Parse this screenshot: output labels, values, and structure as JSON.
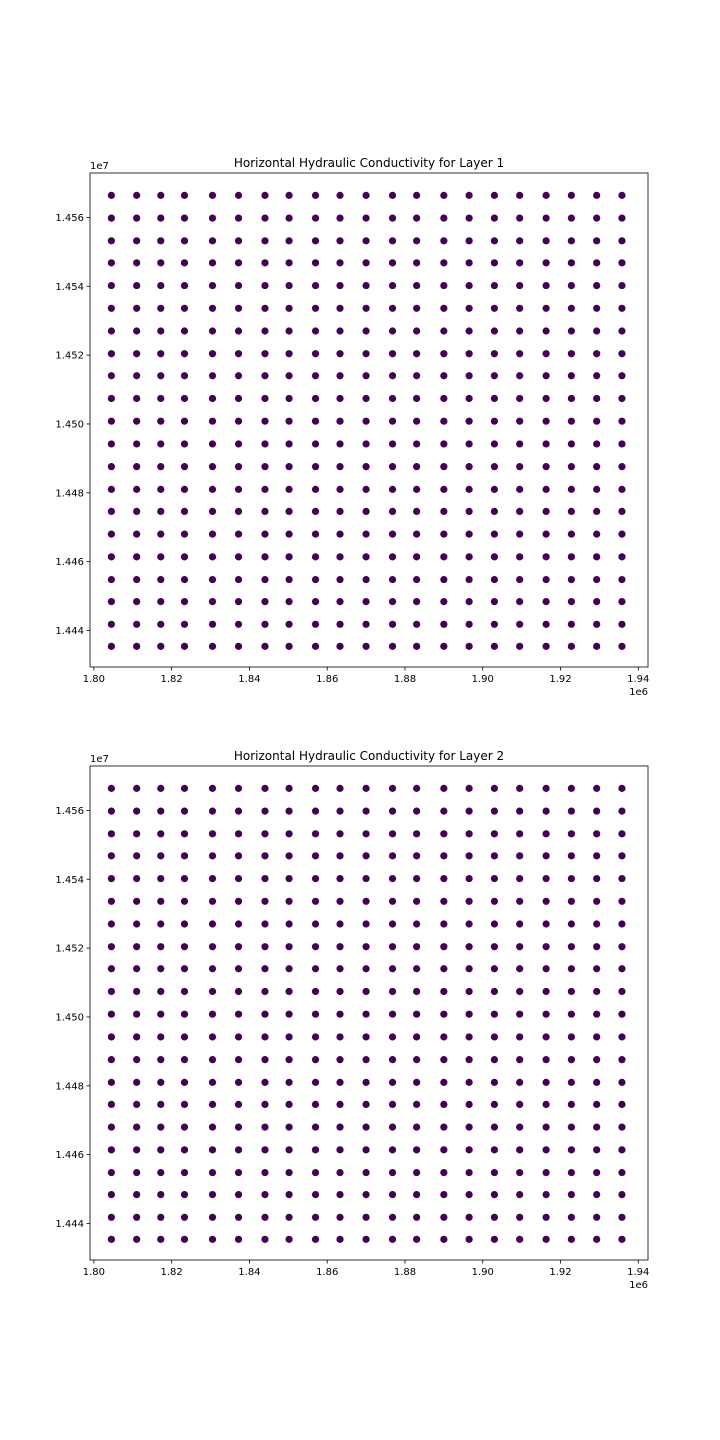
{
  "chart_data": [
    {
      "type": "scatter",
      "title": "Horizontal Hydraulic Conductivity for Layer 1",
      "xlabel": "",
      "ylabel": "",
      "x_offset_label": "1e6",
      "y_offset_label": "1e7",
      "xlim": [
        1.799,
        1.9425
      ],
      "ylim": [
        1.44294,
        1.45729
      ],
      "x_ticks": [
        1.8,
        1.82,
        1.84,
        1.86,
        1.88,
        1.9,
        1.92,
        1.94
      ],
      "x_tick_labels": [
        "1.80",
        "1.82",
        "1.84",
        "1.86",
        "1.88",
        "1.90",
        "1.92",
        "1.94"
      ],
      "y_ticks": [
        1.444,
        1.446,
        1.448,
        1.45,
        1.452,
        1.454,
        1.456
      ],
      "y_tick_labels": [
        "1.444",
        "1.446",
        "1.448",
        "1.450",
        "1.452",
        "1.454",
        "1.456"
      ],
      "grid": false,
      "marker_color": "#440154",
      "x": [
        1.8045,
        1.811,
        1.8172,
        1.8233,
        1.8305,
        1.8372,
        1.844,
        1.8502,
        1.857,
        1.8633,
        1.87,
        1.8768,
        1.883,
        1.89,
        1.8965,
        1.903,
        1.9095,
        1.9163,
        1.9228,
        1.9293,
        1.9358
      ],
      "y": [
        1.44354,
        1.44418,
        1.44484,
        1.44548,
        1.44614,
        1.4468,
        1.44746,
        1.4481,
        1.44876,
        1.44942,
        1.45008,
        1.45074,
        1.4514,
        1.45204,
        1.4527,
        1.45336,
        1.45402,
        1.45468,
        1.45532,
        1.45598,
        1.45664
      ]
    },
    {
      "type": "scatter",
      "title": "Horizontal Hydraulic Conductivity for Layer 2",
      "xlabel": "",
      "ylabel": "",
      "x_offset_label": "1e6",
      "y_offset_label": "1e7",
      "xlim": [
        1.799,
        1.9425
      ],
      "ylim": [
        1.44294,
        1.45729
      ],
      "x_ticks": [
        1.8,
        1.82,
        1.84,
        1.86,
        1.88,
        1.9,
        1.92,
        1.94
      ],
      "x_tick_labels": [
        "1.80",
        "1.82",
        "1.84",
        "1.86",
        "1.88",
        "1.90",
        "1.92",
        "1.94"
      ],
      "y_ticks": [
        1.444,
        1.446,
        1.448,
        1.45,
        1.452,
        1.454,
        1.456
      ],
      "y_tick_labels": [
        "1.444",
        "1.446",
        "1.448",
        "1.450",
        "1.452",
        "1.454",
        "1.456"
      ],
      "grid": false,
      "marker_color": "#440154",
      "x": [
        1.8045,
        1.811,
        1.8172,
        1.8233,
        1.8305,
        1.8372,
        1.844,
        1.8502,
        1.857,
        1.8633,
        1.87,
        1.8768,
        1.883,
        1.89,
        1.8965,
        1.903,
        1.9095,
        1.9163,
        1.9228,
        1.9293,
        1.9358
      ],
      "y": [
        1.44354,
        1.44418,
        1.44484,
        1.44548,
        1.44614,
        1.4468,
        1.44746,
        1.4481,
        1.44876,
        1.44942,
        1.45008,
        1.45074,
        1.4514,
        1.45204,
        1.4527,
        1.45336,
        1.45402,
        1.45468,
        1.45532,
        1.45598,
        1.45664
      ]
    }
  ]
}
